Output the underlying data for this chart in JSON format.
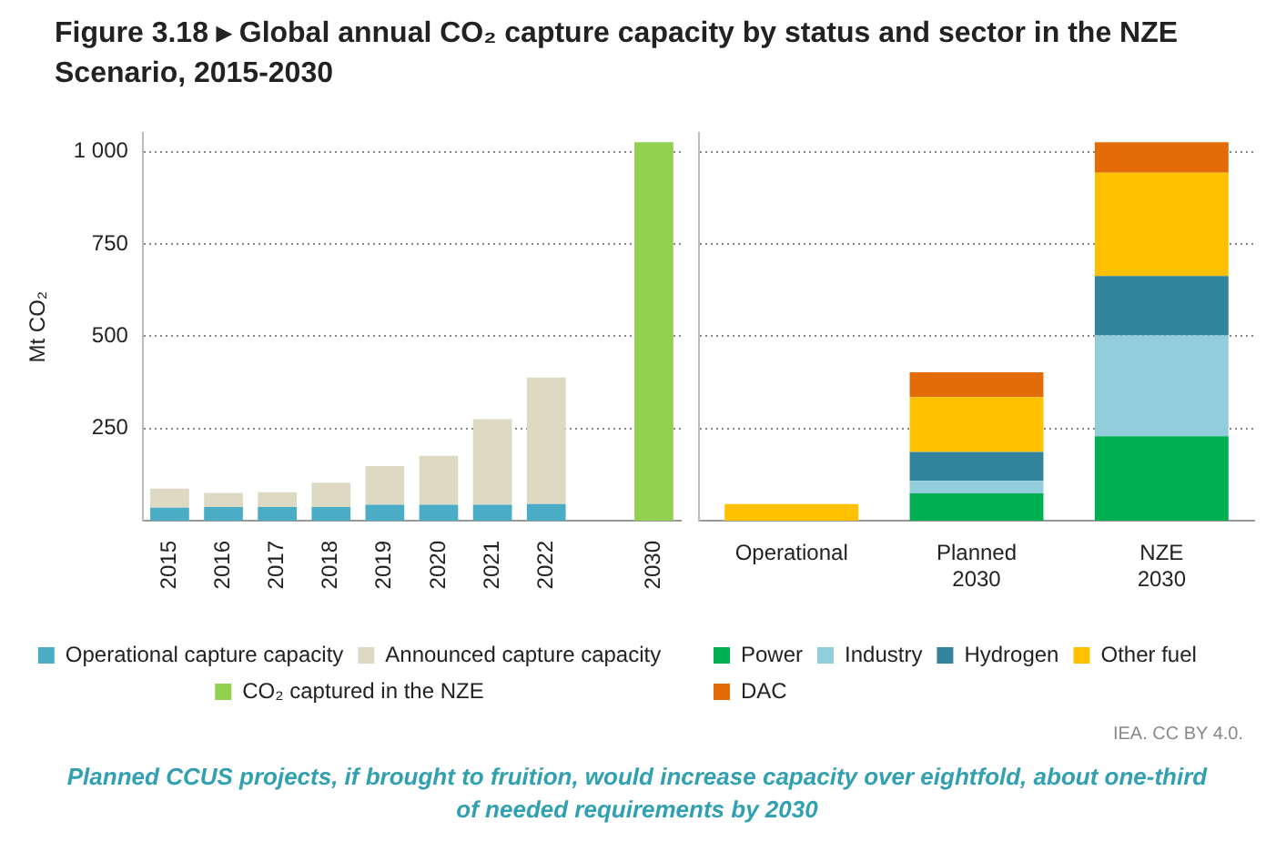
{
  "chart_data": [
    {
      "type": "bar",
      "title": "Figure 3.18 ▸ Global annual CO₂ capture capacity by status and sector in the NZE Scenario, 2015-2030",
      "ylabel": "Mt CO₂",
      "categories": [
        "2015",
        "2016",
        "2017",
        "2018",
        "2019",
        "2020",
        "2021",
        "2022",
        null,
        "2030"
      ],
      "stacked": true,
      "ylim": [
        0,
        1050
      ],
      "yticks": [
        250,
        500,
        750,
        {
          "value": 1000,
          "label": "1 000"
        }
      ],
      "grid": "y",
      "legend": "bottom",
      "series": [
        {
          "name": "Operational capture capacity",
          "color": "#4bacc6",
          "values": [
            35,
            37,
            37,
            37,
            43,
            43,
            43,
            45,
            null,
            null
          ]
        },
        {
          "name": "Announced capture capacity",
          "color": "#ddd9c3",
          "values": [
            52,
            38,
            40,
            66,
            105,
            133,
            232,
            343,
            null,
            null
          ]
        },
        {
          "name": "CO₂ captured in the NZE",
          "color": "#92d050",
          "values": [
            null,
            null,
            null,
            null,
            null,
            null,
            null,
            null,
            null,
            1026
          ]
        }
      ]
    },
    {
      "type": "bar",
      "categories": [
        "Operational",
        "Planned 2030",
        "NZE 2030"
      ],
      "stacked": true,
      "ylim": [
        0,
        1050
      ],
      "yticks": [
        250,
        500,
        750,
        1000
      ],
      "grid": "y",
      "legend": "bottom",
      "tick_labels": "x",
      "series": [
        {
          "name": "Power",
          "color": "#00b050",
          "values": [
            null,
            74,
            229
          ]
        },
        {
          "name": "Industry",
          "color": "#92cddc",
          "values": [
            null,
            34,
            273
          ]
        },
        {
          "name": "Hydrogen",
          "color": "#31849b",
          "values": [
            null,
            78,
            161
          ]
        },
        {
          "name": "Other fuel",
          "color": "#ffc000",
          "values": [
            45,
            149,
            280
          ]
        },
        {
          "name": "DAC",
          "color": "#e36c09",
          "values": [
            null,
            67,
            83
          ]
        }
      ],
      "annotations": [
        "IEA. CC BY 4.0.",
        "Planned CCUS projects, if brought to fruition, would increase capacity over eightfold, about one-third of needed requirements by 2030"
      ]
    }
  ]
}
